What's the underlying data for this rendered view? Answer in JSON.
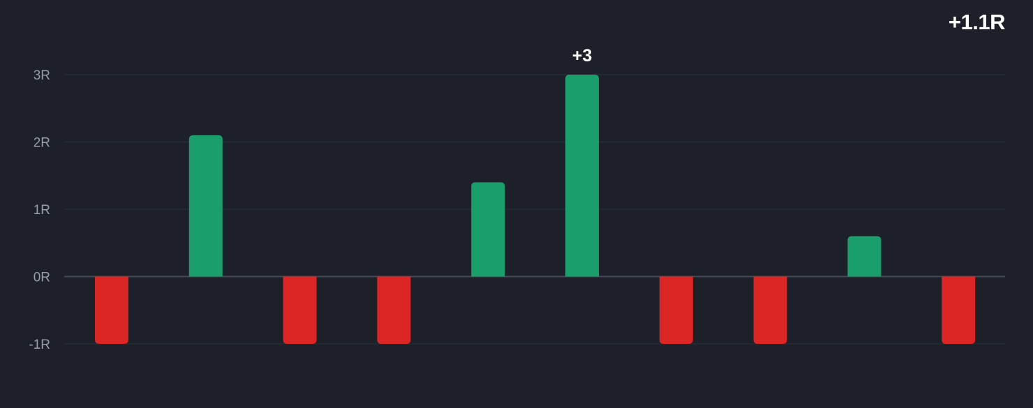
{
  "summary": {
    "total_label": "+1.1R"
  },
  "colors": {
    "background": "#1d2029",
    "gridline": "#2a2e38",
    "zero_line": "#454a56",
    "tick_text": "#9a9ea8",
    "win": "#1a9e6c",
    "loss": "#dc2626",
    "annotation_text": "#ffffff"
  },
  "chart_data": {
    "type": "bar",
    "title": "",
    "xlabel": "",
    "ylabel": "",
    "ylim": [
      -1,
      3
    ],
    "grid": true,
    "y_ticks": [
      {
        "value": 3,
        "label": "3R"
      },
      {
        "value": 2,
        "label": "2R"
      },
      {
        "value": 1,
        "label": "1R"
      },
      {
        "value": 0,
        "label": "0R"
      },
      {
        "value": -1,
        "label": "-1R"
      }
    ],
    "values": [
      -1,
      2.1,
      -1,
      -1,
      1.4,
      3,
      -1,
      -1,
      0.6,
      -1
    ],
    "annotations": [
      {
        "index": 5,
        "text": "+3"
      }
    ]
  }
}
